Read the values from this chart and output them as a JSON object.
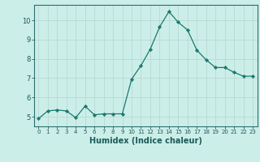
{
  "x": [
    0,
    1,
    2,
    3,
    4,
    5,
    6,
    7,
    8,
    9,
    10,
    11,
    12,
    13,
    14,
    15,
    16,
    17,
    18,
    19,
    20,
    21,
    22,
    23
  ],
  "y": [
    4.9,
    5.3,
    5.35,
    5.3,
    4.95,
    5.55,
    5.1,
    5.15,
    5.15,
    5.15,
    6.95,
    7.65,
    8.5,
    9.65,
    10.45,
    9.9,
    9.5,
    8.45,
    7.95,
    7.55,
    7.55,
    7.3,
    7.1,
    7.1
  ],
  "line_color": "#1a7a6e",
  "marker": "D",
  "marker_size": 2.2,
  "bg_color": "#cceee8",
  "grid_color": "#b8d8d4",
  "ylabel_ticks": [
    5,
    6,
    7,
    8,
    9,
    10
  ],
  "ylim": [
    4.5,
    10.8
  ],
  "xlim": [
    -0.5,
    23.5
  ],
  "xlabel": "Humidex (Indice chaleur)",
  "tick_color": "#1a5a5a",
  "axis_color": "#2a7070",
  "font_size_ticks_x": 5.0,
  "font_size_ticks_y": 6.0,
  "font_size_label": 7.0,
  "linewidth": 0.9
}
